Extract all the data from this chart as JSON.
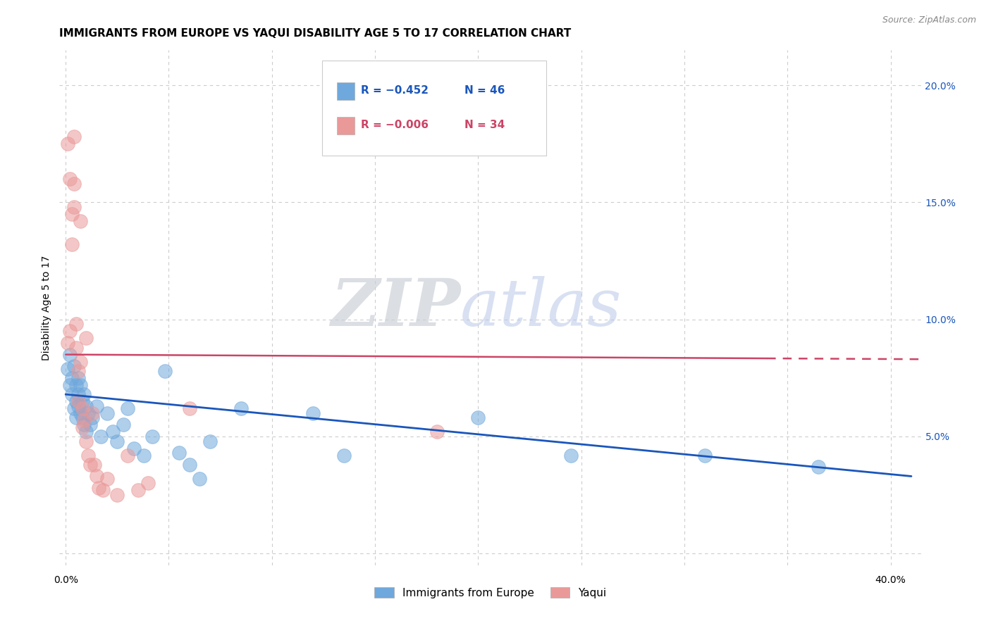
{
  "title": "IMMIGRANTS FROM EUROPE VS YAQUI DISABILITY AGE 5 TO 17 CORRELATION CHART",
  "source": "Source: ZipAtlas.com",
  "ylabel": "Disability Age 5 to 17",
  "xlim": [
    -0.003,
    0.415
  ],
  "ylim": [
    -0.005,
    0.215
  ],
  "xtick_positions": [
    0.0,
    0.05,
    0.1,
    0.15,
    0.2,
    0.25,
    0.3,
    0.35,
    0.4
  ],
  "xticklabels": [
    "0.0%",
    "",
    "",
    "",
    "",
    "",
    "",
    "",
    "40.0%"
  ],
  "ytick_right_positions": [
    0.0,
    0.05,
    0.1,
    0.15,
    0.2
  ],
  "yticklabels_right": [
    "",
    "5.0%",
    "10.0%",
    "15.0%",
    "20.0%"
  ],
  "blue_color": "#6fa8dc",
  "pink_color": "#ea9999",
  "blue_line_color": "#1a56bb",
  "pink_line_color": "#cc4466",
  "legend_R_blue": "−0.452",
  "legend_N_blue": "46",
  "legend_R_pink": "−0.006",
  "legend_N_pink": "34",
  "watermark_zip": "ZIP",
  "watermark_atlas": "atlas",
  "blue_scatter_x": [
    0.001,
    0.002,
    0.002,
    0.003,
    0.003,
    0.004,
    0.004,
    0.005,
    0.005,
    0.005,
    0.006,
    0.006,
    0.006,
    0.007,
    0.007,
    0.008,
    0.008,
    0.009,
    0.009,
    0.01,
    0.01,
    0.011,
    0.012,
    0.013,
    0.015,
    0.017,
    0.02,
    0.023,
    0.025,
    0.028,
    0.03,
    0.033,
    0.038,
    0.042,
    0.048,
    0.055,
    0.06,
    0.065,
    0.07,
    0.085,
    0.12,
    0.135,
    0.2,
    0.245,
    0.31,
    0.365
  ],
  "blue_scatter_y": [
    0.079,
    0.085,
    0.072,
    0.075,
    0.068,
    0.08,
    0.062,
    0.065,
    0.072,
    0.058,
    0.068,
    0.063,
    0.075,
    0.06,
    0.072,
    0.065,
    0.058,
    0.055,
    0.068,
    0.063,
    0.052,
    0.06,
    0.055,
    0.058,
    0.063,
    0.05,
    0.06,
    0.052,
    0.048,
    0.055,
    0.062,
    0.045,
    0.042,
    0.05,
    0.078,
    0.043,
    0.038,
    0.032,
    0.048,
    0.062,
    0.06,
    0.042,
    0.058,
    0.042,
    0.042,
    0.037
  ],
  "pink_scatter_x": [
    0.001,
    0.001,
    0.002,
    0.002,
    0.003,
    0.003,
    0.004,
    0.004,
    0.004,
    0.005,
    0.005,
    0.006,
    0.006,
    0.007,
    0.007,
    0.008,
    0.008,
    0.009,
    0.01,
    0.01,
    0.011,
    0.012,
    0.013,
    0.014,
    0.015,
    0.016,
    0.018,
    0.02,
    0.025,
    0.03,
    0.035,
    0.04,
    0.06,
    0.18
  ],
  "pink_scatter_y": [
    0.09,
    0.175,
    0.095,
    0.16,
    0.145,
    0.132,
    0.178,
    0.158,
    0.148,
    0.088,
    0.098,
    0.078,
    0.065,
    0.142,
    0.082,
    0.062,
    0.054,
    0.057,
    0.092,
    0.048,
    0.042,
    0.038,
    0.06,
    0.038,
    0.033,
    0.028,
    0.027,
    0.032,
    0.025,
    0.042,
    0.027,
    0.03,
    0.062,
    0.052
  ],
  "blue_line_x0": 0.0,
  "blue_line_x1": 0.41,
  "blue_line_y0": 0.068,
  "blue_line_y1": 0.033,
  "pink_line_solid_x0": 0.0,
  "pink_line_solid_x1": 0.34,
  "pink_line_dashed_x0": 0.34,
  "pink_line_dashed_x1": 0.415,
  "pink_line_y0": 0.085,
  "pink_line_y1": 0.083,
  "grid_color": "#cccccc",
  "bg_color": "#ffffff",
  "title_fontsize": 11,
  "ylabel_fontsize": 10,
  "tick_fontsize": 10,
  "legend_fontsize": 11,
  "source_fontsize": 9
}
